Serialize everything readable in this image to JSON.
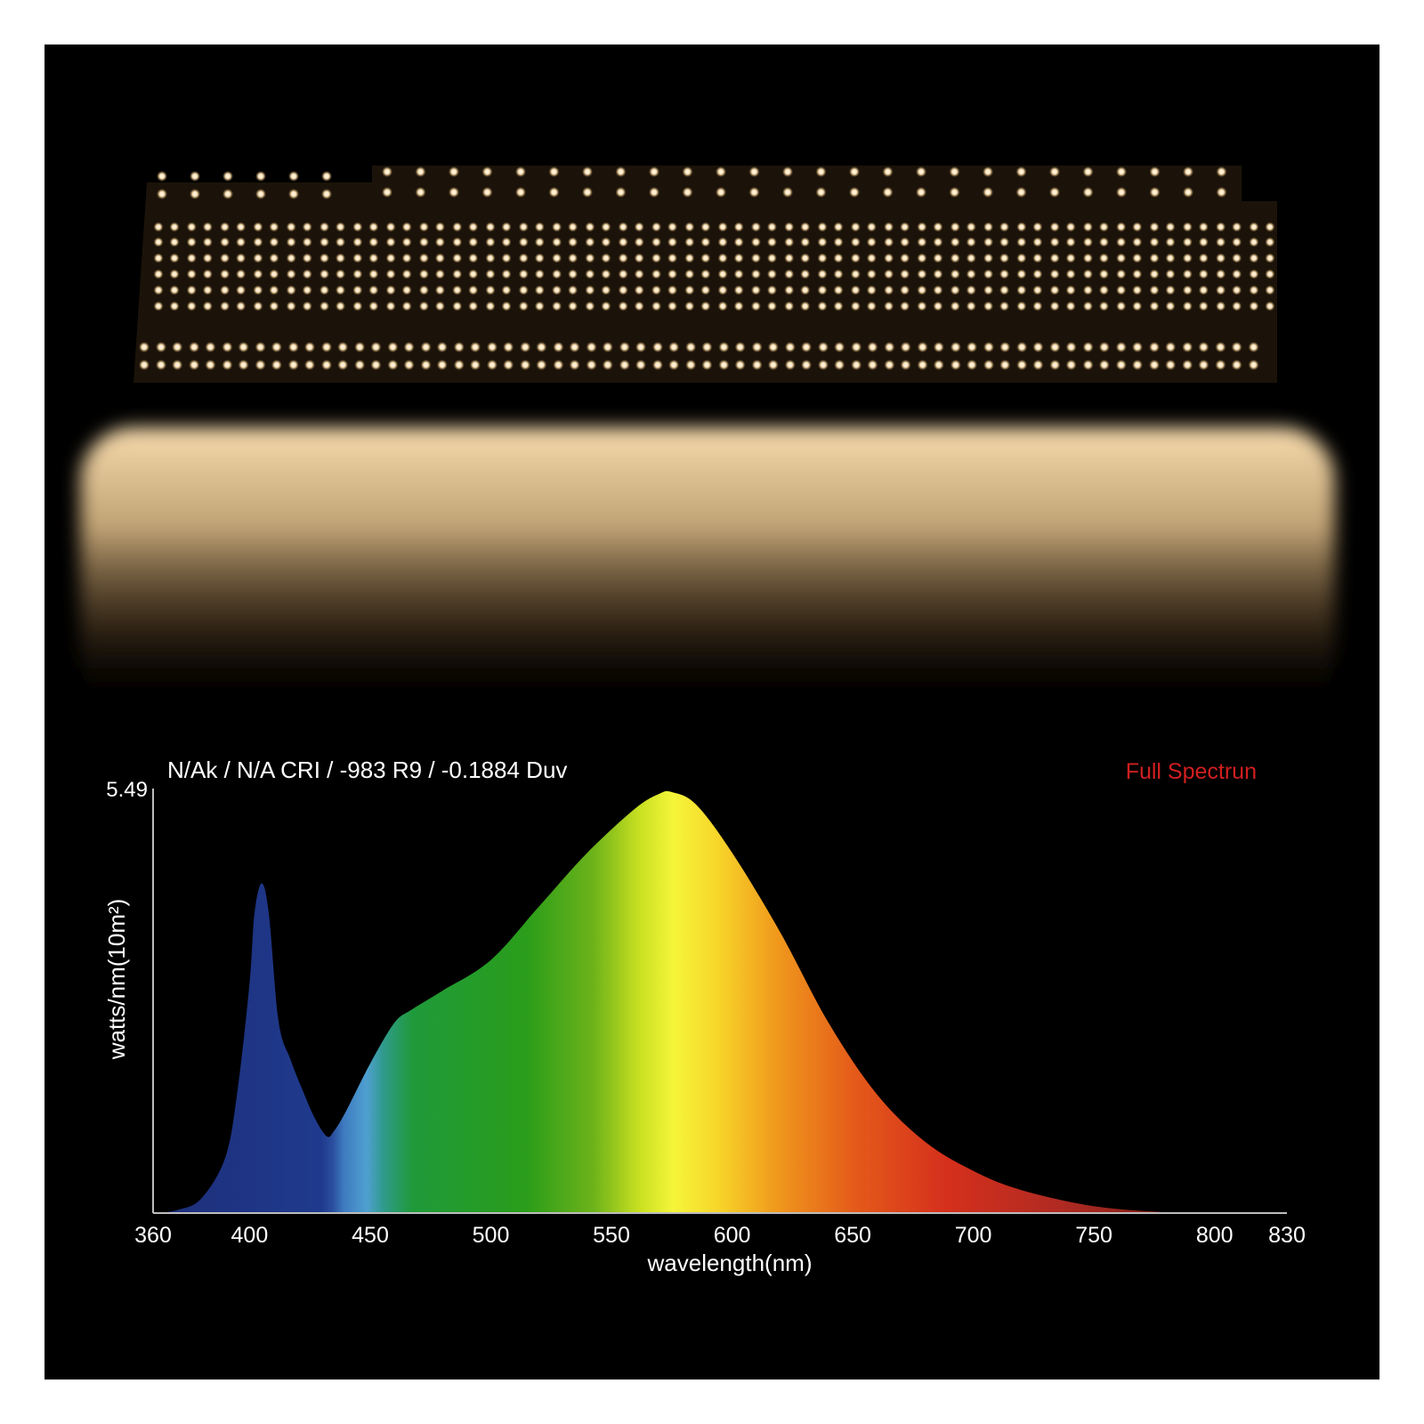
{
  "photo": {
    "subject": "LED quantum board",
    "light_color": "#f6d7a5",
    "pcb_color": "#1a1208",
    "background_color": "#000000"
  },
  "chart_data": {
    "type": "area",
    "title": "N/Ak / N/A CRI / -983 R9 / -0.1884 Duv",
    "legend_label": "Full Spectrun",
    "legend_color": "#d21f1f",
    "xlabel": "wavelength(nm)",
    "ylabel": "watts/nm(10m²)",
    "y_max_label": "5.49",
    "xlim": [
      360,
      830
    ],
    "ylim": [
      0,
      5.49
    ],
    "x_ticks": [
      360,
      400,
      450,
      500,
      550,
      600,
      650,
      700,
      750,
      800,
      830
    ],
    "grid": false,
    "fill": "visible-spectrum gradient",
    "x": [
      360,
      370,
      380,
      390,
      395,
      400,
      402,
      405,
      408,
      412,
      417,
      422,
      427,
      432,
      435,
      440,
      450,
      460,
      467,
      480,
      500,
      520,
      540,
      560,
      570,
      575,
      585,
      600,
      620,
      640,
      660,
      680,
      700,
      720,
      750,
      780,
      800,
      830
    ],
    "y": [
      0.0,
      0.04,
      0.19,
      0.73,
      1.6,
      3.0,
      3.9,
      4.3,
      3.9,
      2.5,
      2.0,
      1.6,
      1.24,
      1.0,
      1.07,
      1.33,
      1.95,
      2.48,
      2.65,
      2.9,
      3.3,
      4.0,
      4.7,
      5.28,
      5.47,
      5.49,
      5.33,
      4.7,
      3.66,
      2.48,
      1.55,
      0.93,
      0.55,
      0.3,
      0.09,
      0.01,
      0.0,
      0.0
    ]
  }
}
